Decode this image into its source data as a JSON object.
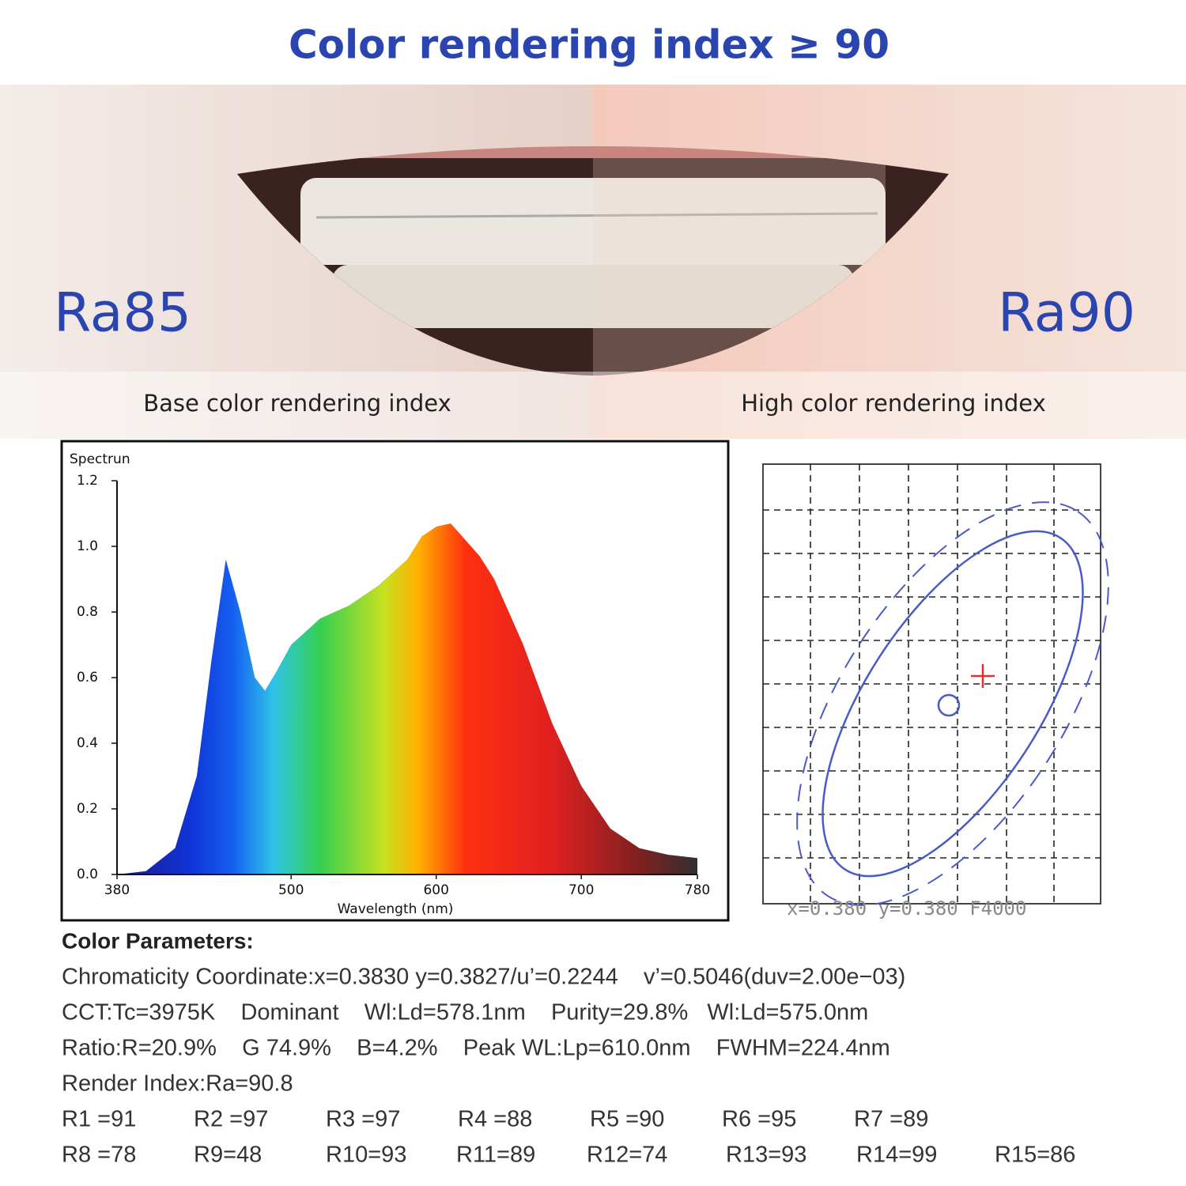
{
  "header": {
    "title": "Color rendering index ≥ 90"
  },
  "photo": {
    "left_label": "Ra85",
    "right_label": "Ra90",
    "left_caption": "Base color rendering index",
    "right_caption": "High color rendering index"
  },
  "chart_data": {
    "type": "area",
    "y_title": "Spectrun",
    "x_title": "Wavelength  (nm)",
    "x": [
      380,
      400,
      420,
      435,
      445,
      455,
      465,
      475,
      482,
      490,
      500,
      520,
      540,
      560,
      580,
      590,
      600,
      610,
      620,
      630,
      640,
      650,
      660,
      680,
      700,
      720,
      740,
      760,
      780
    ],
    "values": [
      0,
      0.01,
      0.08,
      0.3,
      0.65,
      0.96,
      0.8,
      0.6,
      0.56,
      0.62,
      0.7,
      0.78,
      0.82,
      0.88,
      0.96,
      1.03,
      1.06,
      1.07,
      1.02,
      0.97,
      0.9,
      0.8,
      0.7,
      0.46,
      0.27,
      0.14,
      0.08,
      0.06,
      0.05
    ],
    "xlim": [
      380,
      780
    ],
    "xticks": [
      380,
      500,
      600,
      700,
      780
    ],
    "ylim": [
      0,
      1.2
    ],
    "yticks": [
      {
        "value": 0,
        "label": "0.0"
      },
      0.2,
      0.4,
      0.6,
      0.8,
      {
        "value": 1,
        "label": "1.0"
      },
      1.2
    ]
  },
  "chromaticity": {
    "caption": "x=0.380 y=0.380 F4000"
  },
  "parameters": {
    "heading": "Color Parameters:",
    "lines": [
      "Chromaticity Coordinate:x=0.3830 y=0.3827/u’=0.2244    v’=0.5046(duv=2.00e−03)",
      "CCT:Tc=3975K    Dominant    Wl:Ld=578.1nm    Purity=29.8%   Wl:Ld=575.0nm",
      "Ratio:R=20.9%    G 74.9%    B=4.2%    Peak WL:Lp=610.0nm    FWHM=224.4nm",
      "Render Index:Ra=90.8"
    ],
    "r_values": [
      [
        "R1 =91",
        "R2 =97",
        "R3 =97",
        "R4 =88",
        "R5 =90",
        "R6 =95",
        "R7 =89"
      ],
      [
        "R8 =78",
        "R9=48",
        "R10=93",
        "R11=89",
        "R12=74",
        "R13=93",
        "R14=99",
        "R15=86"
      ]
    ]
  }
}
